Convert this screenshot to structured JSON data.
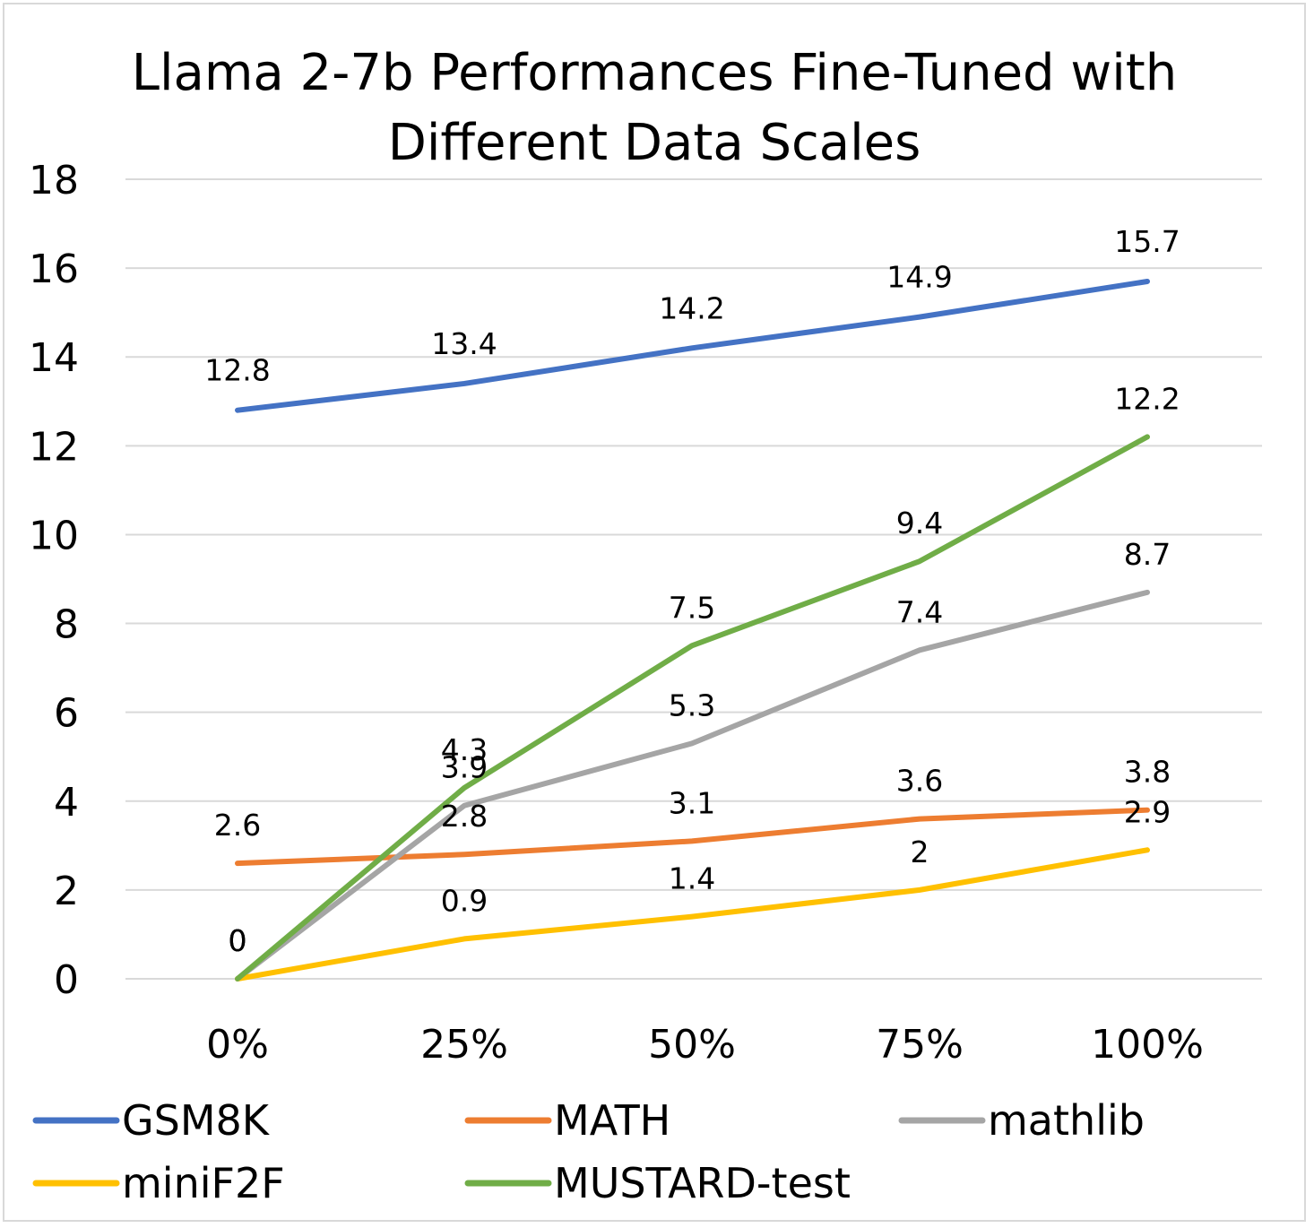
{
  "chart_data": {
    "type": "line",
    "title_lines": [
      "Llama 2-7b Performances Fine-Tuned with",
      "Different Data Scales"
    ],
    "categories": [
      "0%",
      "25%",
      "50%",
      "75%",
      "100%"
    ],
    "ylim": [
      0,
      18
    ],
    "yticks": [
      "0",
      "2",
      "4",
      "6",
      "8",
      "10",
      "12",
      "14",
      "16",
      "18"
    ],
    "grid": true,
    "legend_position": "bottom",
    "series": [
      {
        "name": "GSM8K",
        "color": "#4472c4",
        "values": [
          12.8,
          13.4,
          14.2,
          14.9,
          15.7
        ],
        "labels": [
          "12.8",
          "13.4",
          "14.2",
          "14.9",
          "15.7"
        ]
      },
      {
        "name": "MATH",
        "color": "#ed7d31",
        "values": [
          2.6,
          2.8,
          3.1,
          3.6,
          3.8
        ],
        "labels": [
          "2.6",
          "2.8",
          "3.1",
          "3.6",
          "3.8"
        ]
      },
      {
        "name": "mathlib",
        "color": "#a5a5a5",
        "values": [
          0,
          3.9,
          5.3,
          7.4,
          8.7
        ],
        "labels": [
          "0",
          "3.9",
          "5.3",
          "7.4",
          "8.7"
        ]
      },
      {
        "name": "miniF2F",
        "color": "#ffc000",
        "values": [
          0,
          0.9,
          1.4,
          2,
          2.9
        ],
        "labels": [
          "0",
          "0.9",
          "1.4",
          "2",
          "2.9"
        ]
      },
      {
        "name": "MUSTARD-test",
        "color": "#70ad47",
        "values": [
          0,
          4.3,
          7.5,
          9.4,
          12.2
        ],
        "labels": [
          "0",
          "4.3",
          "7.5",
          "9.4",
          "12.2"
        ]
      }
    ]
  }
}
